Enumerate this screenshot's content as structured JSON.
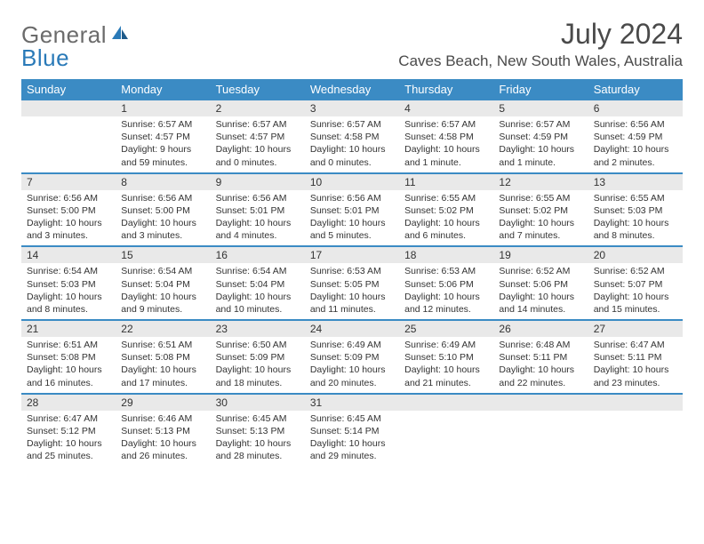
{
  "logo": {
    "text1": "General",
    "text2": "Blue"
  },
  "title": "July 2024",
  "location": "Caves Beach, New South Wales, Australia",
  "colors": {
    "header_bg": "#3b8bc4",
    "header_text": "#ffffff",
    "daynum_bg": "#e9e9e9",
    "rule": "#3b8bc4",
    "logo_gray": "#6b6b6b",
    "logo_blue": "#2a7ab8",
    "text": "#333333",
    "title_color": "#4a4a4a"
  },
  "day_headers": [
    "Sunday",
    "Monday",
    "Tuesday",
    "Wednesday",
    "Thursday",
    "Friday",
    "Saturday"
  ],
  "weeks": [
    [
      {
        "n": "",
        "sr": "",
        "ss": "",
        "dl": ""
      },
      {
        "n": "1",
        "sr": "Sunrise: 6:57 AM",
        "ss": "Sunset: 4:57 PM",
        "dl": "Daylight: 9 hours and 59 minutes."
      },
      {
        "n": "2",
        "sr": "Sunrise: 6:57 AM",
        "ss": "Sunset: 4:57 PM",
        "dl": "Daylight: 10 hours and 0 minutes."
      },
      {
        "n": "3",
        "sr": "Sunrise: 6:57 AM",
        "ss": "Sunset: 4:58 PM",
        "dl": "Daylight: 10 hours and 0 minutes."
      },
      {
        "n": "4",
        "sr": "Sunrise: 6:57 AM",
        "ss": "Sunset: 4:58 PM",
        "dl": "Daylight: 10 hours and 1 minute."
      },
      {
        "n": "5",
        "sr": "Sunrise: 6:57 AM",
        "ss": "Sunset: 4:59 PM",
        "dl": "Daylight: 10 hours and 1 minute."
      },
      {
        "n": "6",
        "sr": "Sunrise: 6:56 AM",
        "ss": "Sunset: 4:59 PM",
        "dl": "Daylight: 10 hours and 2 minutes."
      }
    ],
    [
      {
        "n": "7",
        "sr": "Sunrise: 6:56 AM",
        "ss": "Sunset: 5:00 PM",
        "dl": "Daylight: 10 hours and 3 minutes."
      },
      {
        "n": "8",
        "sr": "Sunrise: 6:56 AM",
        "ss": "Sunset: 5:00 PM",
        "dl": "Daylight: 10 hours and 3 minutes."
      },
      {
        "n": "9",
        "sr": "Sunrise: 6:56 AM",
        "ss": "Sunset: 5:01 PM",
        "dl": "Daylight: 10 hours and 4 minutes."
      },
      {
        "n": "10",
        "sr": "Sunrise: 6:56 AM",
        "ss": "Sunset: 5:01 PM",
        "dl": "Daylight: 10 hours and 5 minutes."
      },
      {
        "n": "11",
        "sr": "Sunrise: 6:55 AM",
        "ss": "Sunset: 5:02 PM",
        "dl": "Daylight: 10 hours and 6 minutes."
      },
      {
        "n": "12",
        "sr": "Sunrise: 6:55 AM",
        "ss": "Sunset: 5:02 PM",
        "dl": "Daylight: 10 hours and 7 minutes."
      },
      {
        "n": "13",
        "sr": "Sunrise: 6:55 AM",
        "ss": "Sunset: 5:03 PM",
        "dl": "Daylight: 10 hours and 8 minutes."
      }
    ],
    [
      {
        "n": "14",
        "sr": "Sunrise: 6:54 AM",
        "ss": "Sunset: 5:03 PM",
        "dl": "Daylight: 10 hours and 8 minutes."
      },
      {
        "n": "15",
        "sr": "Sunrise: 6:54 AM",
        "ss": "Sunset: 5:04 PM",
        "dl": "Daylight: 10 hours and 9 minutes."
      },
      {
        "n": "16",
        "sr": "Sunrise: 6:54 AM",
        "ss": "Sunset: 5:04 PM",
        "dl": "Daylight: 10 hours and 10 minutes."
      },
      {
        "n": "17",
        "sr": "Sunrise: 6:53 AM",
        "ss": "Sunset: 5:05 PM",
        "dl": "Daylight: 10 hours and 11 minutes."
      },
      {
        "n": "18",
        "sr": "Sunrise: 6:53 AM",
        "ss": "Sunset: 5:06 PM",
        "dl": "Daylight: 10 hours and 12 minutes."
      },
      {
        "n": "19",
        "sr": "Sunrise: 6:52 AM",
        "ss": "Sunset: 5:06 PM",
        "dl": "Daylight: 10 hours and 14 minutes."
      },
      {
        "n": "20",
        "sr": "Sunrise: 6:52 AM",
        "ss": "Sunset: 5:07 PM",
        "dl": "Daylight: 10 hours and 15 minutes."
      }
    ],
    [
      {
        "n": "21",
        "sr": "Sunrise: 6:51 AM",
        "ss": "Sunset: 5:08 PM",
        "dl": "Daylight: 10 hours and 16 minutes."
      },
      {
        "n": "22",
        "sr": "Sunrise: 6:51 AM",
        "ss": "Sunset: 5:08 PM",
        "dl": "Daylight: 10 hours and 17 minutes."
      },
      {
        "n": "23",
        "sr": "Sunrise: 6:50 AM",
        "ss": "Sunset: 5:09 PM",
        "dl": "Daylight: 10 hours and 18 minutes."
      },
      {
        "n": "24",
        "sr": "Sunrise: 6:49 AM",
        "ss": "Sunset: 5:09 PM",
        "dl": "Daylight: 10 hours and 20 minutes."
      },
      {
        "n": "25",
        "sr": "Sunrise: 6:49 AM",
        "ss": "Sunset: 5:10 PM",
        "dl": "Daylight: 10 hours and 21 minutes."
      },
      {
        "n": "26",
        "sr": "Sunrise: 6:48 AM",
        "ss": "Sunset: 5:11 PM",
        "dl": "Daylight: 10 hours and 22 minutes."
      },
      {
        "n": "27",
        "sr": "Sunrise: 6:47 AM",
        "ss": "Sunset: 5:11 PM",
        "dl": "Daylight: 10 hours and 23 minutes."
      }
    ],
    [
      {
        "n": "28",
        "sr": "Sunrise: 6:47 AM",
        "ss": "Sunset: 5:12 PM",
        "dl": "Daylight: 10 hours and 25 minutes."
      },
      {
        "n": "29",
        "sr": "Sunrise: 6:46 AM",
        "ss": "Sunset: 5:13 PM",
        "dl": "Daylight: 10 hours and 26 minutes."
      },
      {
        "n": "30",
        "sr": "Sunrise: 6:45 AM",
        "ss": "Sunset: 5:13 PM",
        "dl": "Daylight: 10 hours and 28 minutes."
      },
      {
        "n": "31",
        "sr": "Sunrise: 6:45 AM",
        "ss": "Sunset: 5:14 PM",
        "dl": "Daylight: 10 hours and 29 minutes."
      },
      {
        "n": "",
        "sr": "",
        "ss": "",
        "dl": ""
      },
      {
        "n": "",
        "sr": "",
        "ss": "",
        "dl": ""
      },
      {
        "n": "",
        "sr": "",
        "ss": "",
        "dl": ""
      }
    ]
  ]
}
